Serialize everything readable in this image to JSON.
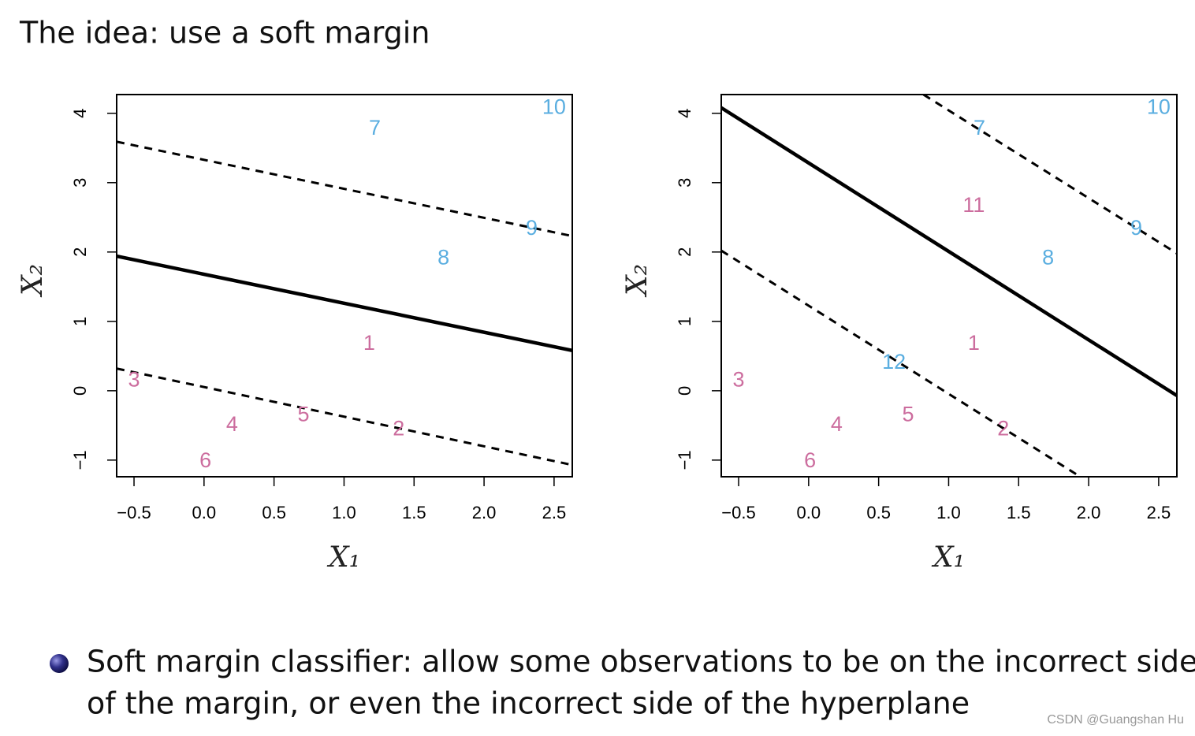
{
  "title": "The idea: use a soft margin",
  "chart_data": [
    {
      "type": "scatter",
      "xlabel": "X₁",
      "ylabel": "X₂",
      "xlim": [
        -0.624,
        2.63
      ],
      "ylim": [
        -1.24,
        4.27
      ],
      "xticks": [
        {
          "value": -0.5,
          "label": "−0.5"
        },
        {
          "value": 0,
          "label": "0.0"
        },
        0.5,
        {
          "value": 1,
          "label": "1.0"
        },
        1.5,
        {
          "value": 2,
          "label": "2.0"
        },
        2.5
      ],
      "yticks": [
        {
          "value": -1,
          "label": "−1"
        },
        0,
        1,
        2,
        3,
        4
      ],
      "series": [
        {
          "color": "#cc6d9e",
          "labels": [
            "1",
            "2",
            "3",
            "4",
            "5",
            "6"
          ],
          "x": [
            1.18,
            1.39,
            -0.5,
            0.2,
            0.71,
            0.01
          ],
          "y": [
            0.67,
            -0.56,
            0.14,
            -0.5,
            -0.36,
            -1.02
          ]
        },
        {
          "color": "#5aaee0",
          "labels": [
            "7",
            "8",
            "9",
            "10"
          ],
          "x": [
            1.22,
            1.71,
            2.34,
            2.5
          ],
          "y": [
            3.77,
            1.9,
            2.33,
            4.07
          ]
        }
      ],
      "lines": [
        {
          "style": "solid",
          "x": [
            -0.624,
            2.63
          ],
          "y": [
            1.94,
            0.58
          ]
        },
        {
          "style": "dashed",
          "x": [
            -0.624,
            2.63
          ],
          "y": [
            3.59,
            2.23
          ]
        },
        {
          "style": "dashed",
          "x": [
            -0.624,
            2.63
          ],
          "y": [
            0.32,
            -1.07
          ]
        }
      ]
    },
    {
      "type": "scatter",
      "xlabel": "X₁",
      "ylabel": "X₂",
      "xlim": [
        -0.624,
        2.63
      ],
      "ylim": [
        -1.24,
        4.27
      ],
      "xticks": [
        {
          "value": -0.5,
          "label": "−0.5"
        },
        {
          "value": 0,
          "label": "0.0"
        },
        0.5,
        {
          "value": 1,
          "label": "1.0"
        },
        1.5,
        {
          "value": 2,
          "label": "2.0"
        },
        2.5
      ],
      "yticks": [
        {
          "value": -1,
          "label": "−1"
        },
        0,
        1,
        2,
        3,
        4
      ],
      "series": [
        {
          "color": "#cc6d9e",
          "labels": [
            "1",
            "2",
            "3",
            "4",
            "5",
            "6",
            "11"
          ],
          "x": [
            1.18,
            1.39,
            -0.5,
            0.2,
            0.71,
            0.01,
            1.18
          ],
          "y": [
            0.67,
            -0.56,
            0.14,
            -0.5,
            -0.36,
            -1.02,
            2.66
          ]
        },
        {
          "color": "#5aaee0",
          "labels": [
            "7",
            "8",
            "9",
            "10",
            "12"
          ],
          "x": [
            1.22,
            1.71,
            2.34,
            2.5,
            0.61
          ],
          "y": [
            3.77,
            1.9,
            2.33,
            4.07,
            0.4
          ]
        }
      ],
      "lines": [
        {
          "style": "solid",
          "x": [
            -0.624,
            2.63
          ],
          "y": [
            4.08,
            -0.07
          ]
        },
        {
          "style": "dashed",
          "x": [
            0.82,
            2.63
          ],
          "y": [
            4.27,
            1.98
          ]
        },
        {
          "style": "dashed",
          "x": [
            -0.624,
            1.94
          ],
          "y": [
            2.02,
            -1.24
          ]
        }
      ]
    }
  ],
  "bullet": [
    "Soft margin classifier: allow some observations to be on the incorrect side",
    "of the margin, or even the incorrect side of the hyperplane"
  ],
  "watermark": "CSDN @Guangshan Hu"
}
